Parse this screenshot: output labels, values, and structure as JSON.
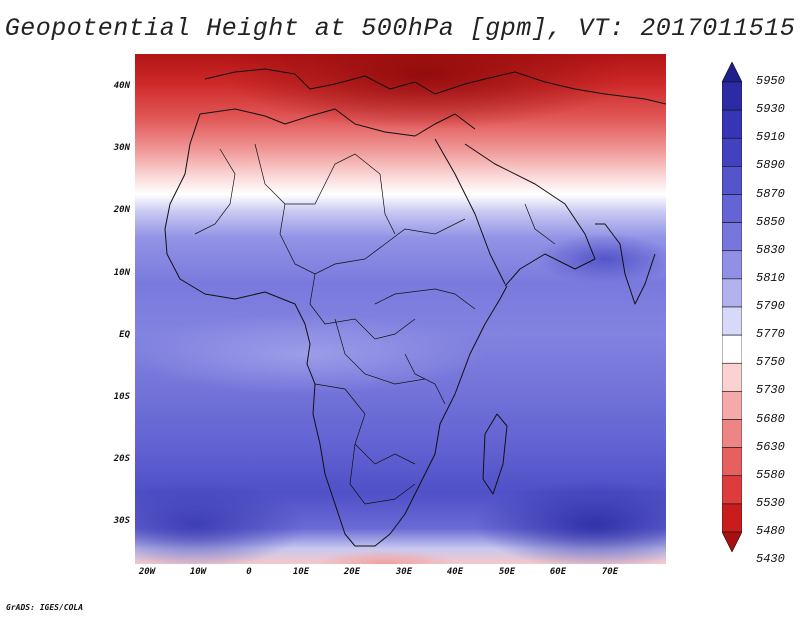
{
  "title": "Geopotential Height at 500hPa [gpm], VT: 2017011515",
  "credit": "GrADS: IGES/COLA",
  "map": {
    "lat_labels": [
      "40N",
      "30N",
      "20N",
      "10N",
      "EQ",
      "10S",
      "20S",
      "30S"
    ],
    "lon_labels": [
      "20W",
      "10W",
      "0",
      "10E",
      "20E",
      "30E",
      "40E",
      "50E",
      "60E",
      "70E"
    ],
    "lat_values": [
      40,
      30,
      20,
      10,
      0,
      -10,
      -20,
      -30
    ],
    "lon_values": [
      -20,
      -10,
      0,
      10,
      20,
      30,
      40,
      50,
      60,
      70
    ],
    "lon_range": [
      -22,
      80
    ],
    "lat_range": [
      -37,
      45
    ],
    "variable": "Geopotential Height at 500hPa",
    "units": "gpm"
  },
  "colorbar": {
    "levels": [
      "5950",
      "5930",
      "5910",
      "5890",
      "5870",
      "5850",
      "5830",
      "5810",
      "5790",
      "5770",
      "5750",
      "5730",
      "5680",
      "5630",
      "5580",
      "5530",
      "5480",
      "5430"
    ],
    "colors": [
      "#1f1f8c",
      "#2b2ba6",
      "#3535b5",
      "#4242c0",
      "#5454cc",
      "#6464d6",
      "#7676dd",
      "#9090e6",
      "#b2b2ef",
      "#d8d8f8",
      "#ffffff",
      "#fbd2d2",
      "#f5aaaa",
      "#ee8585",
      "#e66060",
      "#dc3c3c",
      "#c91d1d",
      "#a80f0f"
    ]
  }
}
